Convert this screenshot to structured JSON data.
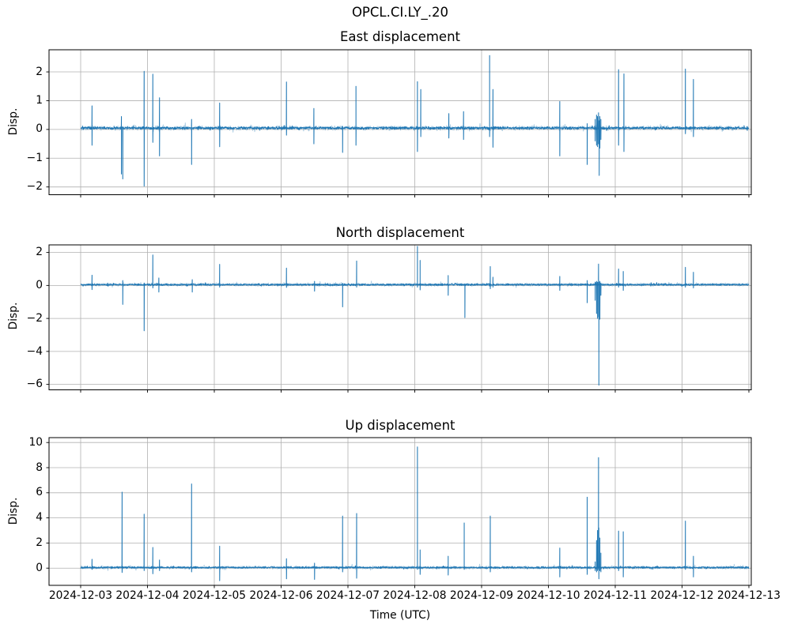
{
  "figure": {
    "title": "OPCL.CI.LY_.20",
    "background": "#ffffff",
    "line_color": "#1f77b4",
    "grid_color": "#b0b0b0",
    "spine_color": "#000000"
  },
  "x_axis": {
    "label": "Time (UTC)",
    "tick_labels": [
      "2024-12-03",
      "2024-12-04",
      "2024-12-05",
      "2024-12-06",
      "2024-12-07",
      "2024-12-08",
      "2024-12-09",
      "2024-12-10",
      "2024-12-11",
      "2024-12-12",
      "2024-12-13"
    ],
    "x_unit": "days since 2024-12-03 00:00 UTC",
    "xlim_days": [
      -0.47,
      10.03
    ]
  },
  "chart_data": [
    {
      "type": "line",
      "title": "East displacement",
      "ylabel": "Disp.",
      "y_ticks": [
        2,
        1,
        0,
        -1,
        -2
      ],
      "y_tick_labels": [
        "2",
        "1",
        "0",
        "−1",
        "−2"
      ],
      "ylim": [
        -2.27,
        2.77
      ],
      "baseline": 0.05,
      "noise_amp": 0.05,
      "grid": true,
      "legend": "none",
      "spikes": [
        [
          0.17,
          0.82,
          -0.55
        ],
        [
          0.61,
          0.45,
          -1.55
        ],
        [
          0.63,
          0.1,
          -1.72
        ],
        [
          0.95,
          2.02,
          -1.97
        ],
        [
          1.08,
          1.92,
          -0.45
        ],
        [
          1.18,
          1.1,
          -0.92
        ],
        [
          1.66,
          0.35,
          -1.22
        ],
        [
          2.08,
          0.92,
          -0.6
        ],
        [
          3.08,
          1.65,
          -0.2
        ],
        [
          3.49,
          0.73,
          -0.5
        ],
        [
          3.92,
          0.1,
          -0.8
        ],
        [
          4.12,
          1.5,
          -0.55
        ],
        [
          5.04,
          1.66,
          -0.77
        ],
        [
          5.09,
          1.39,
          -0.25
        ],
        [
          5.51,
          0.55,
          -0.3
        ],
        [
          5.73,
          0.62,
          -0.35
        ],
        [
          6.12,
          2.57,
          -0.25
        ],
        [
          6.17,
          1.39,
          -0.62
        ],
        [
          7.17,
          0.97,
          -0.92
        ],
        [
          7.58,
          0.2,
          -1.22
        ],
        [
          7.7,
          0.35,
          -0.4
        ],
        [
          7.72,
          0.5,
          -0.55
        ],
        [
          7.735,
          0.45,
          -0.6
        ],
        [
          7.75,
          0.58,
          -0.5
        ],
        [
          7.76,
          0.3,
          -1.6
        ],
        [
          7.77,
          0.45,
          -0.65
        ],
        [
          7.785,
          0.35,
          -0.35
        ],
        [
          8.05,
          2.08,
          -0.55
        ],
        [
          8.13,
          1.93,
          -0.77
        ],
        [
          9.05,
          2.1,
          -0.15
        ],
        [
          9.17,
          1.74,
          -0.25
        ]
      ]
    },
    {
      "type": "line",
      "title": "North displacement",
      "ylabel": "Disp.",
      "y_ticks": [
        2,
        0,
        -2,
        -4,
        -6
      ],
      "y_tick_labels": [
        "2",
        "0",
        "−2",
        "−4",
        "−6"
      ],
      "ylim": [
        -6.33,
        2.46
      ],
      "baseline": 0.05,
      "noise_amp": 0.06,
      "grid": true,
      "legend": "none",
      "spikes": [
        [
          0.17,
          0.62,
          -0.25
        ],
        [
          0.63,
          0.3,
          -1.15
        ],
        [
          0.95,
          0.15,
          -2.75
        ],
        [
          1.08,
          1.85,
          -0.15
        ],
        [
          1.17,
          0.45,
          -0.4
        ],
        [
          1.67,
          0.35,
          -0.4
        ],
        [
          2.08,
          1.28,
          -0.1
        ],
        [
          3.08,
          1.05,
          -0.12
        ],
        [
          3.5,
          0.25,
          -0.35
        ],
        [
          3.92,
          0.1,
          -1.3
        ],
        [
          4.13,
          1.48,
          -0.1
        ],
        [
          5.04,
          2.37,
          -0.1
        ],
        [
          5.08,
          1.52,
          -0.27
        ],
        [
          5.5,
          0.6,
          -0.6
        ],
        [
          5.75,
          0.1,
          -1.95
        ],
        [
          6.13,
          1.15,
          -0.2
        ],
        [
          6.17,
          0.5,
          -0.1
        ],
        [
          7.17,
          0.55,
          -0.3
        ],
        [
          7.58,
          0.3,
          -1.05
        ],
        [
          7.7,
          0.2,
          -0.9
        ],
        [
          7.72,
          0.25,
          -1.7
        ],
        [
          7.735,
          0.2,
          -2.0
        ],
        [
          7.75,
          1.3,
          -1.9
        ],
        [
          7.755,
          0.2,
          -6.05
        ],
        [
          7.77,
          0.25,
          -2.05
        ],
        [
          7.785,
          0.15,
          -0.6
        ],
        [
          8.05,
          1.0,
          -0.1
        ],
        [
          8.12,
          0.85,
          -0.3
        ],
        [
          9.05,
          1.1,
          -0.1
        ],
        [
          9.17,
          0.8,
          -0.15
        ]
      ]
    },
    {
      "type": "line",
      "title": "Up displacement",
      "ylabel": "Disp.",
      "y_ticks": [
        10,
        8,
        6,
        4,
        2,
        0
      ],
      "y_tick_labels": [
        "10",
        "8",
        "6",
        "4",
        "2",
        "0"
      ],
      "ylim": [
        -1.37,
        10.39
      ],
      "baseline": 0.05,
      "noise_amp": 0.08,
      "grid": true,
      "legend": "none",
      "spikes": [
        [
          0.17,
          0.7,
          -0.1
        ],
        [
          0.62,
          6.05,
          -0.35
        ],
        [
          0.95,
          4.3,
          -0.2
        ],
        [
          1.08,
          1.65,
          -0.45
        ],
        [
          1.18,
          0.65,
          -0.2
        ],
        [
          1.66,
          6.7,
          -0.3
        ],
        [
          2.08,
          1.75,
          -1.0
        ],
        [
          3.08,
          0.75,
          -0.85
        ],
        [
          3.5,
          0.4,
          -0.9
        ],
        [
          3.92,
          4.15,
          -0.3
        ],
        [
          4.13,
          4.35,
          -0.8
        ],
        [
          5.04,
          9.65,
          -0.1
        ],
        [
          5.08,
          1.45,
          -0.5
        ],
        [
          5.5,
          0.95,
          -0.55
        ],
        [
          5.74,
          3.6,
          -0.1
        ],
        [
          6.13,
          4.15,
          -0.3
        ],
        [
          7.17,
          1.6,
          -0.7
        ],
        [
          7.58,
          5.65,
          -0.5
        ],
        [
          7.7,
          0.5,
          -0.2
        ],
        [
          7.72,
          2.2,
          -0.3
        ],
        [
          7.735,
          3.0,
          -0.2
        ],
        [
          7.75,
          8.8,
          -0.1
        ],
        [
          7.755,
          3.2,
          -0.85
        ],
        [
          7.77,
          2.4,
          -0.2
        ],
        [
          7.785,
          1.2,
          -0.3
        ],
        [
          8.05,
          2.95,
          -0.2
        ],
        [
          8.12,
          2.9,
          -0.7
        ],
        [
          9.05,
          3.75,
          -0.1
        ],
        [
          9.17,
          0.95,
          -0.7
        ]
      ]
    }
  ]
}
